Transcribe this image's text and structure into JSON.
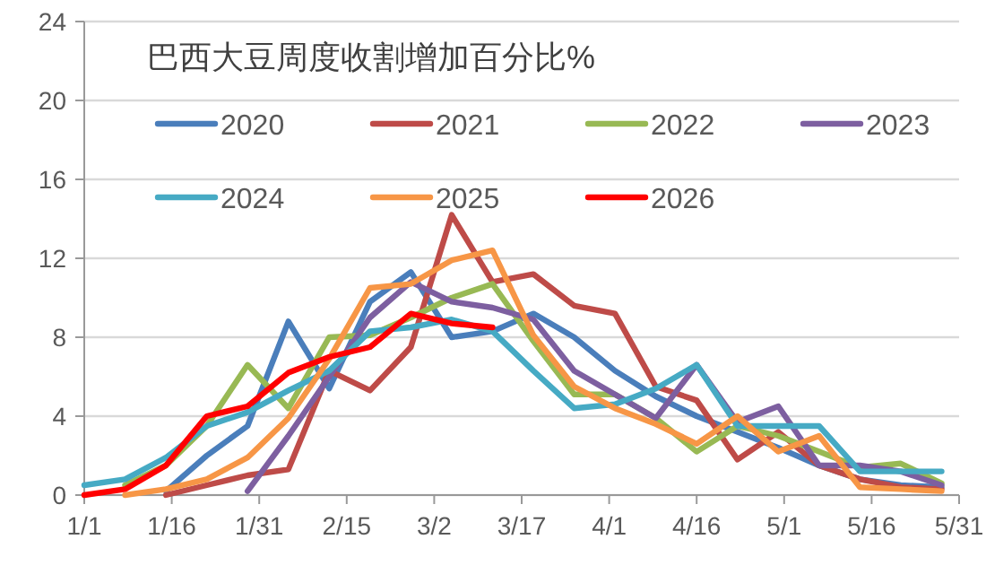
{
  "chart_data": {
    "type": "line",
    "title": "巴西大豆周度收割增加百分比%",
    "x": [
      "--01-01",
      "--01-08",
      "--01-15",
      "--01-22",
      "--01-29",
      "--02-05",
      "--02-12",
      "--02-19",
      "--02-26",
      "--03-05",
      "--03-12",
      "--03-19",
      "--03-26",
      "--04-02",
      "--04-09",
      "--04-16",
      "--04-23",
      "--04-30",
      "--05-07",
      "--05-14",
      "--05-21",
      "--05-28"
    ],
    "series": [
      {
        "name": "2020",
        "color": "#4a7ebb",
        "values": [
          null,
          null,
          0.2,
          2.0,
          3.5,
          8.8,
          5.4,
          9.8,
          11.3,
          8.0,
          8.3,
          9.2,
          8.0,
          6.3,
          5.0,
          4.0,
          3.2,
          2.4,
          1.5,
          0.8,
          0.5,
          0.4
        ]
      },
      {
        "name": "2021",
        "color": "#be4b48",
        "values": [
          null,
          null,
          0,
          0.5,
          1.0,
          1.3,
          6.3,
          5.3,
          7.5,
          14.2,
          10.8,
          11.2,
          9.6,
          9.2,
          5.5,
          4.8,
          1.8,
          3.2,
          1.5,
          0.8,
          0.4,
          0.3
        ]
      },
      {
        "name": "2022",
        "color": "#98b954",
        "values": [
          null,
          0.5,
          1.5,
          3.5,
          6.6,
          4.4,
          8.0,
          8.1,
          9.0,
          10.0,
          10.7,
          7.8,
          5.1,
          5.1,
          3.9,
          2.2,
          3.5,
          3.0,
          2.2,
          1.4,
          1.6,
          0.6
        ]
      },
      {
        "name": "2023",
        "color": "#7d5fa0",
        "values": [
          null,
          null,
          null,
          null,
          0.2,
          3.0,
          6.0,
          9.0,
          10.8,
          9.8,
          9.5,
          8.9,
          6.3,
          5.1,
          3.9,
          6.6,
          3.7,
          4.5,
          1.5,
          1.5,
          1.2,
          0.5
        ]
      },
      {
        "name": "2024",
        "color": "#46aac4",
        "values": [
          0.5,
          0.8,
          1.9,
          3.5,
          4.2,
          5.3,
          6.3,
          8.3,
          8.5,
          8.9,
          8.3,
          6.3,
          4.4,
          4.6,
          5.4,
          6.6,
          3.5,
          3.5,
          3.5,
          1.2,
          1.2,
          1.2
        ]
      },
      {
        "name": "2025",
        "color": "#f79646",
        "values": [
          null,
          0,
          0.3,
          0.8,
          1.9,
          3.9,
          6.9,
          10.5,
          10.7,
          11.9,
          12.4,
          8.1,
          5.5,
          4.4,
          3.6,
          2.6,
          4.0,
          2.2,
          3.0,
          0.4,
          0.3,
          0.2
        ]
      },
      {
        "name": "2026",
        "color": "#ff0000",
        "values": [
          0,
          0.3,
          1.5,
          4.0,
          4.5,
          6.2,
          7.0,
          7.5,
          9.2,
          8.7,
          8.5,
          null,
          null,
          null,
          null,
          null,
          null,
          null,
          null,
          null,
          null,
          null
        ]
      }
    ],
    "xlim": [
      "--01-01",
      "--05-31"
    ],
    "xticks": [
      {
        "value": "--01-01",
        "label": "1/1"
      },
      {
        "value": "--01-16",
        "label": "1/16"
      },
      {
        "value": "--01-31",
        "label": "1/31"
      },
      {
        "value": "--02-15",
        "label": "2/15"
      },
      {
        "value": "--03-02",
        "label": "3/2"
      },
      {
        "value": "--03-17",
        "label": "3/17"
      },
      {
        "value": "--04-01",
        "label": "4/1"
      },
      {
        "value": "--04-16",
        "label": "4/16"
      },
      {
        "value": "--05-01",
        "label": "5/1"
      },
      {
        "value": "--05-16",
        "label": "5/16"
      },
      {
        "value": "--05-31",
        "label": "5/31"
      }
    ],
    "ylim": [
      0,
      24
    ],
    "yticks": [
      0,
      4,
      8,
      12,
      16,
      20,
      24
    ],
    "grid": "y",
    "legend": "top"
  }
}
